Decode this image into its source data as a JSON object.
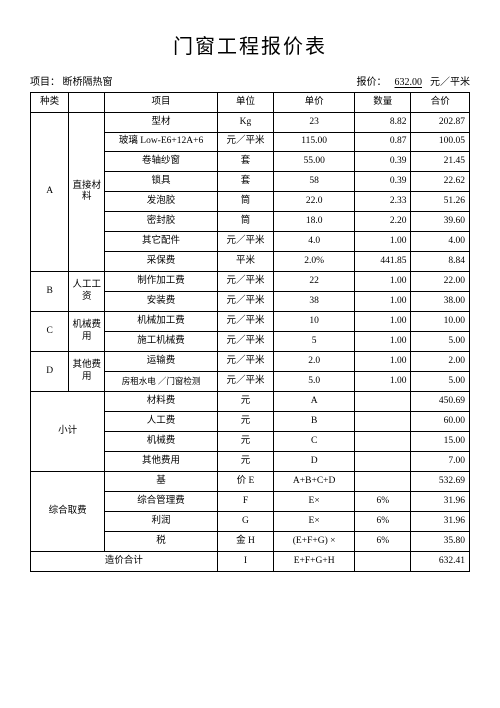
{
  "title": "门窗工程报价表",
  "hdr": {
    "project_label": "项目：",
    "project_value": "断桥隔热窗",
    "quote_label": "报价：",
    "quote_value": "632.00",
    "quote_unit": "元／平米"
  },
  "th": {
    "kind": "种类",
    "item": "项目",
    "unit": "单位",
    "price": "单价",
    "qty": "数量",
    "sum": "合价"
  },
  "secA": {
    "code": "A",
    "cat": "直接材料",
    "r1": {
      "item": "型材",
      "unit": "Kg",
      "price": "23",
      "qty": "8.82",
      "sum": "202.87"
    },
    "r2": {
      "label": "玻璃",
      "item": "Low-E6+12A+6",
      "unit": "元／平米",
      "price": "115.00",
      "qty": "0.87",
      "sum": "100.05"
    },
    "r3": {
      "item": "卷轴纱窗",
      "unit": "套",
      "price": "55.00",
      "qty": "0.39",
      "sum": "21.45"
    },
    "r4": {
      "item": "锁具",
      "unit": "套",
      "price": "58",
      "qty": "0.39",
      "sum": "22.62"
    },
    "r5": {
      "item": "发泡胶",
      "unit": "筒",
      "price": "22.0",
      "qty": "2.33",
      "sum": "51.26"
    },
    "r6": {
      "item": "密封胶",
      "unit": "筒",
      "price": "18.0",
      "qty": "2.20",
      "sum": "39.60"
    },
    "r7": {
      "item": "其它配件",
      "unit": "元／平米",
      "price": "4.0",
      "qty": "1.00",
      "sum": "4.00"
    },
    "r8": {
      "item": "采保费",
      "unit": "平米",
      "price": "2.0%",
      "qty": "441.85",
      "sum": "8.84"
    }
  },
  "secB": {
    "code": "B",
    "cat": "人工工资",
    "r1": {
      "item": "制作加工费",
      "unit": "元／平米",
      "price": "22",
      "qty": "1.00",
      "sum": "22.00"
    },
    "r2": {
      "item": "安装费",
      "unit": "元／平米",
      "price": "38",
      "qty": "1.00",
      "sum": "38.00"
    }
  },
  "secC": {
    "code": "C",
    "cat": "机械费用",
    "r1": {
      "item": "机械加工费",
      "unit": "元／平米",
      "price": "10",
      "qty": "1.00",
      "sum": "10.00"
    },
    "r2": {
      "item": "施工机械费",
      "unit": "元／平米",
      "price": "5",
      "qty": "1.00",
      "sum": "5.00"
    }
  },
  "secD": {
    "code": "D",
    "cat": "其他费用",
    "r1": {
      "item": "运输费",
      "unit": "元／平米",
      "price": "2.0",
      "qty": "1.00",
      "sum": "2.00"
    },
    "r2": {
      "item": "房租水电 ／门窗检测",
      "unit": "元／平米",
      "price": "5.0",
      "qty": "1.00",
      "sum": "5.00"
    }
  },
  "sub": {
    "label": "小计",
    "r1": {
      "item": "材料费",
      "unit": "元",
      "price": "A",
      "qty": "",
      "sum": "450.69"
    },
    "r2": {
      "item": "人工费",
      "unit": "元",
      "price": "B",
      "qty": "",
      "sum": "60.00"
    },
    "r3": {
      "item": "机械费",
      "unit": "元",
      "price": "C",
      "qty": "",
      "sum": "15.00"
    },
    "r4": {
      "item": "其他费用",
      "unit": "元",
      "price": "D",
      "qty": "",
      "sum": "7.00"
    }
  },
  "comp": {
    "label": "综合取费",
    "r1": {
      "item": "基",
      "ucode": "价  E",
      "price": "A+B+C+D",
      "qty": "",
      "sum": "532.69"
    },
    "r2": {
      "item": "综合管理费",
      "ucode": "F",
      "price": "E×",
      "qty": "6%",
      "sum": "31.96"
    },
    "r3": {
      "item": "利润",
      "ucode": "G",
      "price": "E×",
      "qty": "6%",
      "sum": "31.96"
    },
    "r4": {
      "item": "税",
      "ucode": "金  H",
      "price": "(E+F+G)  ×",
      "qty": "6%",
      "sum": "35.80"
    }
  },
  "total": {
    "label": "造价合计",
    "ucode": "I",
    "price": "E+F+G+H",
    "qty": "",
    "sum": "632.41"
  }
}
